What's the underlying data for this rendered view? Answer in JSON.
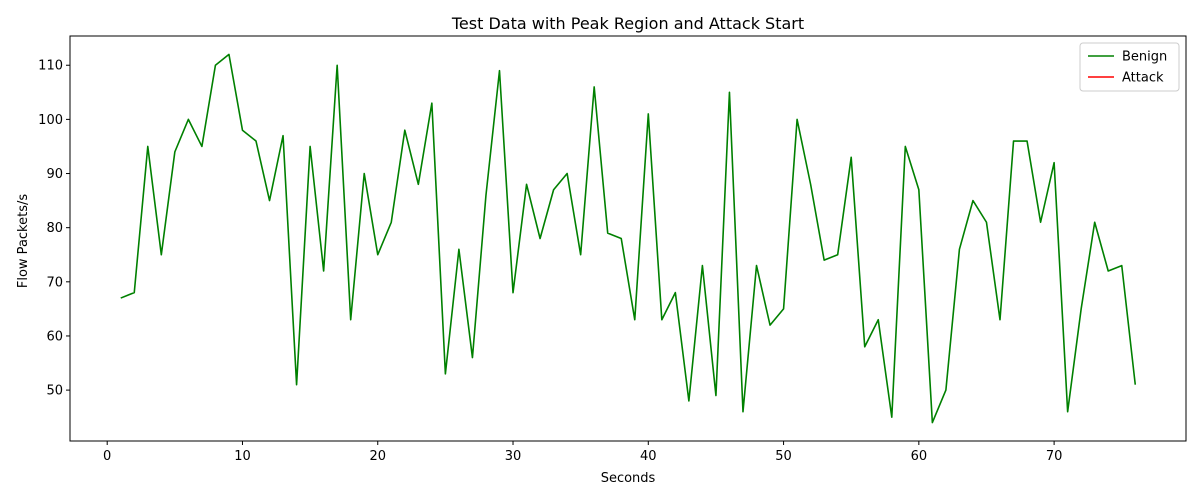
{
  "chart_data": {
    "type": "line",
    "title": "Test Data with Peak Region and Attack Start",
    "xlabel": "Seconds",
    "ylabel": "Flow Packets/s",
    "xlim": [
      -2.75,
      79.75
    ],
    "ylim": [
      40.6,
      115.4
    ],
    "xticks": [
      0,
      10,
      20,
      30,
      40,
      50,
      60,
      70
    ],
    "yticks": [
      50,
      60,
      70,
      80,
      90,
      100,
      110
    ],
    "grid": false,
    "legend_position": "top-right",
    "legend": [
      {
        "name": "Benign",
        "color": "#008000"
      },
      {
        "name": "Attack",
        "color": "#ff0000"
      }
    ],
    "series": [
      {
        "name": "Benign",
        "color": "#008000",
        "x": [
          1,
          2,
          3,
          4,
          5,
          6,
          7,
          8,
          9,
          10,
          11,
          12,
          13,
          14,
          15,
          16,
          17,
          18,
          19,
          20,
          21,
          22,
          23,
          24,
          25,
          26,
          27,
          28,
          29,
          30,
          31,
          32,
          33,
          34,
          35,
          36,
          37,
          38,
          39,
          40,
          41,
          42,
          43,
          44,
          45,
          46,
          47,
          48,
          49,
          50,
          51,
          52,
          53,
          54,
          55,
          56,
          57,
          58,
          59,
          60,
          61,
          62,
          63,
          64,
          65,
          66,
          67,
          68,
          69,
          70,
          71,
          72,
          73,
          74,
          75,
          76
        ],
        "y": [
          67,
          68,
          95,
          75,
          94,
          100,
          95,
          110,
          112,
          98,
          96,
          85,
          97,
          51,
          95,
          72,
          110,
          63,
          90,
          75,
          81,
          98,
          88,
          103,
          53,
          76,
          56,
          86,
          109,
          68,
          88,
          78,
          87,
          90,
          75,
          106,
          79,
          78,
          63,
          101,
          63,
          68,
          48,
          73,
          49,
          105,
          46,
          73,
          62,
          65,
          100,
          88,
          74,
          75,
          93,
          58,
          63,
          45,
          95,
          87,
          44,
          50,
          76,
          85,
          81,
          63,
          96,
          96,
          81,
          92,
          46,
          65,
          81,
          72,
          73,
          51
        ]
      },
      {
        "name": "Attack",
        "color": "#ff0000",
        "x": [],
        "y": []
      }
    ]
  }
}
